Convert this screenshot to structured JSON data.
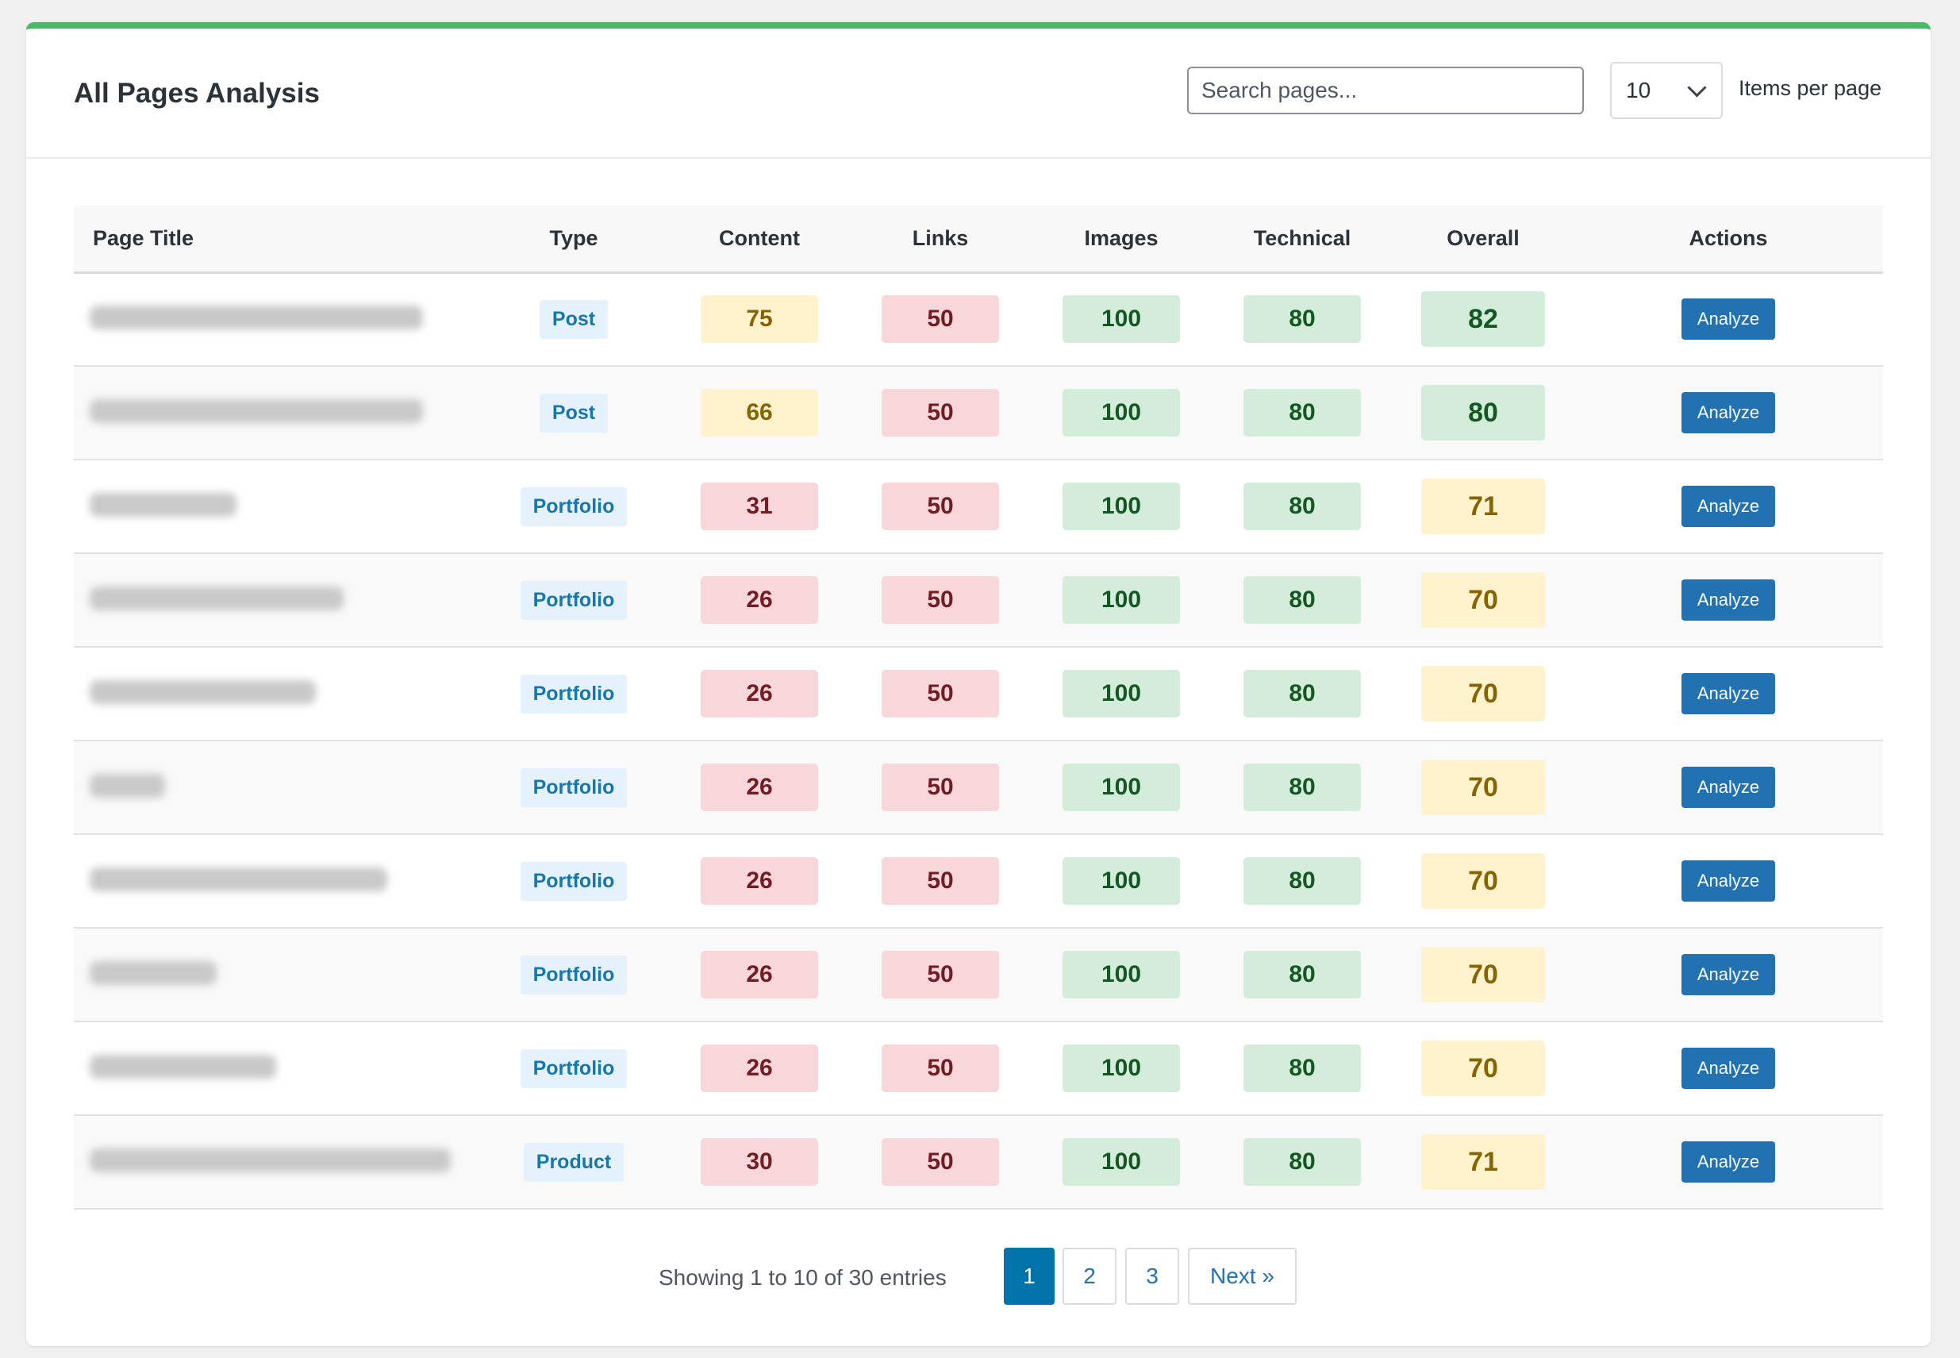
{
  "header": {
    "title": "All Pages Analysis",
    "search_placeholder": "Search pages...",
    "per_page_value": "10",
    "per_page_label": "Items per page"
  },
  "table": {
    "columns": [
      "Page Title",
      "Type",
      "Content",
      "Links",
      "Images",
      "Technical",
      "Overall",
      "Actions"
    ],
    "rows": [
      {
        "type": "Post",
        "content": "75",
        "links": "50",
        "images": "100",
        "technical": "80",
        "overall": "82",
        "action": "Analyze"
      },
      {
        "type": "Post",
        "content": "66",
        "links": "50",
        "images": "100",
        "technical": "80",
        "overall": "80",
        "action": "Analyze"
      },
      {
        "type": "Portfolio",
        "content": "31",
        "links": "50",
        "images": "100",
        "technical": "80",
        "overall": "71",
        "action": "Analyze"
      },
      {
        "type": "Portfolio",
        "content": "26",
        "links": "50",
        "images": "100",
        "technical": "80",
        "overall": "70",
        "action": "Analyze"
      },
      {
        "type": "Portfolio",
        "content": "26",
        "links": "50",
        "images": "100",
        "technical": "80",
        "overall": "70",
        "action": "Analyze"
      },
      {
        "type": "Portfolio",
        "content": "26",
        "links": "50",
        "images": "100",
        "technical": "80",
        "overall": "70",
        "action": "Analyze"
      },
      {
        "type": "Portfolio",
        "content": "26",
        "links": "50",
        "images": "100",
        "technical": "80",
        "overall": "70",
        "action": "Analyze"
      },
      {
        "type": "Portfolio",
        "content": "26",
        "links": "50",
        "images": "100",
        "technical": "80",
        "overall": "70",
        "action": "Analyze"
      },
      {
        "type": "Portfolio",
        "content": "26",
        "links": "50",
        "images": "100",
        "technical": "80",
        "overall": "70",
        "action": "Analyze"
      },
      {
        "type": "Product",
        "content": "30",
        "links": "50",
        "images": "100",
        "technical": "80",
        "overall": "71",
        "action": "Analyze"
      }
    ]
  },
  "pagination": {
    "info": "Showing 1 to 10 of 30 entries",
    "pages": [
      "1",
      "2",
      "3"
    ],
    "current": "1",
    "next_label": "Next »"
  },
  "colors": {
    "accent_bar": "#4ab866",
    "primary": "#2271b1",
    "score_good_bg": "#d4edda",
    "score_warn_bg": "#fff3cd",
    "score_bad_bg": "#f8d7da"
  }
}
